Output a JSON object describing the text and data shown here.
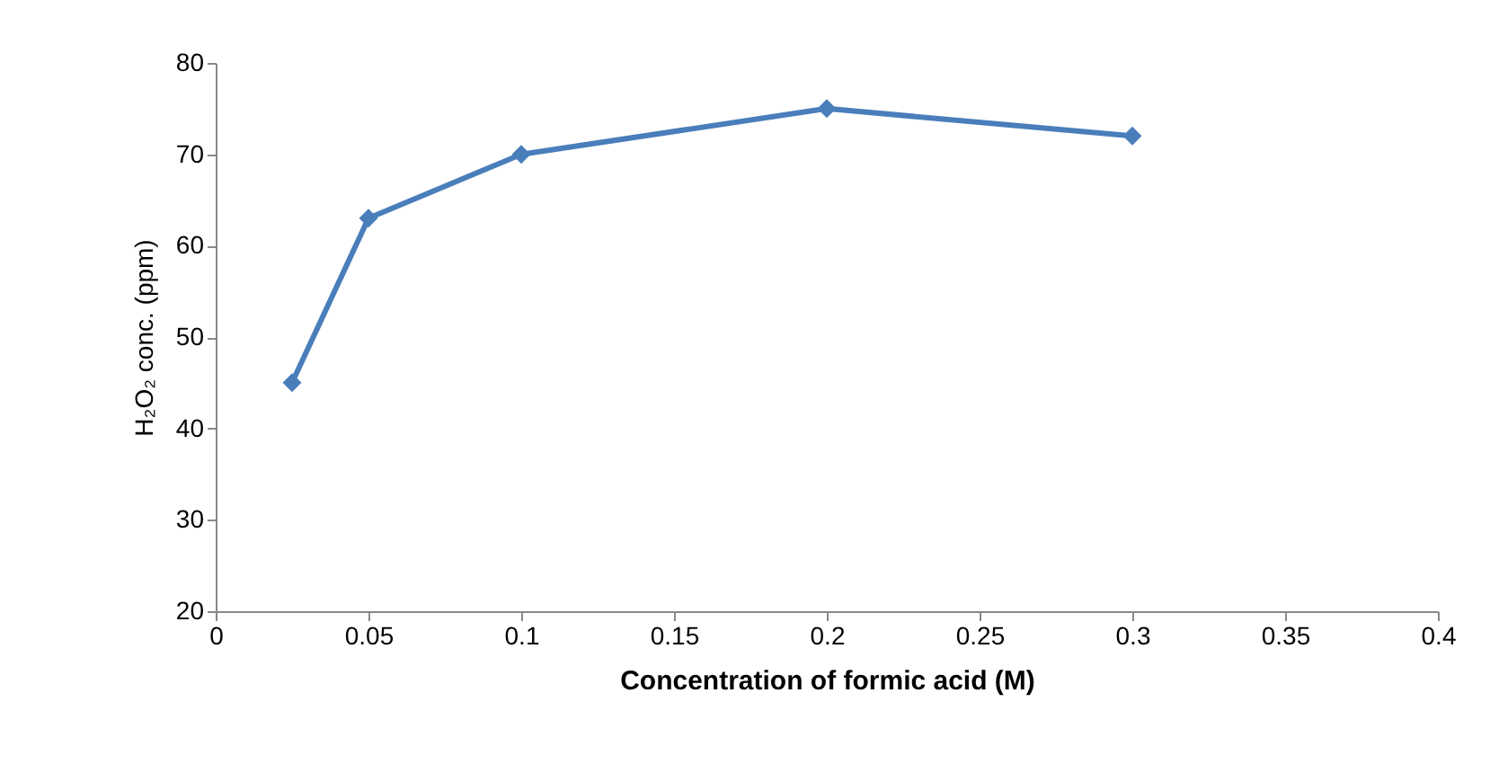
{
  "chart_data": {
    "type": "line",
    "xlabel": "Concentration of formic acid (M)",
    "ylabel": "H₂O₂ conc. (ppm)",
    "x": [
      0.025,
      0.05,
      0.1,
      0.2,
      0.3
    ],
    "series": [
      {
        "color": "#4a7ebb",
        "values": [
          45,
          63,
          70,
          75,
          72
        ]
      }
    ],
    "xlim": [
      0,
      0.4
    ],
    "xticks": [
      0,
      0.05,
      0.1,
      0.15,
      0.2,
      0.25,
      0.3,
      0.35,
      0.4
    ],
    "ylim": [
      20,
      80
    ],
    "yticks": [
      20,
      30,
      40,
      50,
      60,
      70,
      80
    ],
    "grid": false,
    "marker": "diamond",
    "line_style": "solid"
  }
}
